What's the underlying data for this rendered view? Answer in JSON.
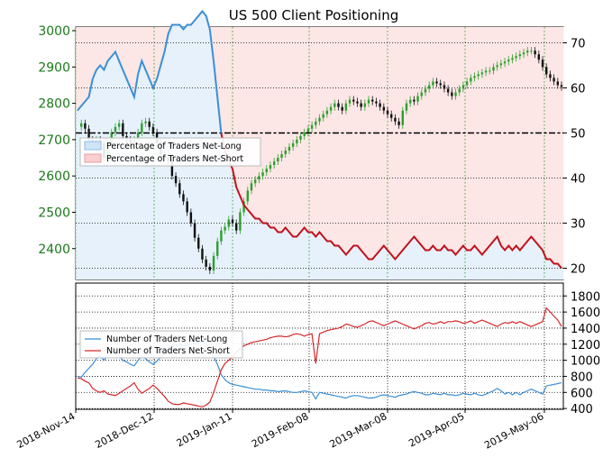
{
  "chart_data": {
    "type": "line",
    "title": "US 500 Client Positioning",
    "x_tick_labels": [
      "2018-Nov-14",
      "2018-Dec-12",
      "2019-Jan-11",
      "2019-Feb-08",
      "2019-Mar-08",
      "2019-Apr-05",
      "2019-May-06"
    ],
    "top_panel": {
      "left_axis": {
        "ticks": [
          2400,
          2500,
          2600,
          2700,
          2800,
          2900,
          3000
        ],
        "ylim": [
          2315,
          3010
        ],
        "color": "#1a7a1a"
      },
      "right_axis": {
        "ticks": [
          20,
          30,
          40,
          50,
          60,
          70
        ],
        "ylim": [
          17.5,
          73.5
        ]
      },
      "reference_line": 50,
      "legend": [
        "Percentage of Traders Net-Long",
        "Percentage of Traders Net-Short"
      ],
      "legend_position": "center-left",
      "price_close": [
        2735,
        2745,
        2730,
        2700,
        2680,
        2700,
        2690,
        2650,
        2690,
        2720,
        2735,
        2745,
        2710,
        2700,
        2690,
        2700,
        2720,
        2745,
        2750,
        2735,
        2720,
        2690,
        2660,
        2650,
        2640,
        2600,
        2580,
        2550,
        2530,
        2500,
        2470,
        2430,
        2400,
        2370,
        2350,
        2340,
        2380,
        2420,
        2450,
        2460,
        2480,
        2470,
        2450,
        2500,
        2530,
        2560,
        2580,
        2590,
        2600,
        2610,
        2620,
        2630,
        2640,
        2650,
        2660,
        2670,
        2680,
        2690,
        2700,
        2710,
        2720,
        2730,
        2740,
        2750,
        2760,
        2770,
        2780,
        2790,
        2800,
        2790,
        2780,
        2800,
        2810,
        2805,
        2800,
        2790,
        2800,
        2810,
        2805,
        2800,
        2790,
        2780,
        2770,
        2760,
        2750,
        2740,
        2780,
        2800,
        2810,
        2805,
        2820,
        2830,
        2840,
        2850,
        2860,
        2855,
        2850,
        2840,
        2830,
        2820,
        2830,
        2840,
        2850,
        2860,
        2870,
        2875,
        2880,
        2885,
        2890,
        2890,
        2900,
        2905,
        2910,
        2915,
        2920,
        2925,
        2930,
        2935,
        2940,
        2945,
        2945,
        2935,
        2920,
        2900,
        2880,
        2870,
        2860,
        2850,
        2845
      ],
      "net_long_pct": [
        55,
        56,
        57,
        58,
        62,
        64,
        65,
        64,
        66,
        67,
        68,
        66,
        64,
        62,
        60,
        58,
        63,
        66,
        64,
        62,
        60,
        62,
        65,
        68,
        72,
        74,
        74,
        74,
        73,
        74,
        74,
        75,
        76,
        77,
        76,
        73,
        66,
        58,
        50,
        46,
        44,
        42,
        38,
        36,
        34,
        33,
        32,
        31,
        31,
        30,
        30,
        29,
        29,
        28,
        28,
        29,
        28,
        27,
        27,
        28,
        29,
        28,
        28,
        27,
        28,
        27,
        26,
        26,
        25,
        25,
        24,
        23,
        24,
        25,
        25,
        24,
        23,
        22,
        22,
        23,
        24,
        25,
        24,
        23,
        22,
        23,
        24,
        25,
        26,
        27,
        26,
        25,
        24,
        24,
        25,
        24,
        24,
        25,
        24,
        24,
        23,
        24,
        25,
        24,
        24,
        25,
        24,
        23,
        24,
        25,
        26,
        27,
        25,
        24,
        25,
        24,
        25,
        24,
        25,
        26,
        27,
        26,
        25,
        24,
        22,
        22,
        21,
        21,
        20
      ],
      "net_short_pct": [
        45,
        44,
        43,
        42,
        38,
        36,
        35,
        36,
        34,
        33,
        32,
        34,
        36,
        38,
        40,
        42,
        37,
        34,
        36,
        38,
        40,
        38,
        35,
        32,
        28,
        26,
        26,
        26,
        27,
        26,
        26,
        25,
        24,
        23,
        24,
        27,
        34,
        42,
        50,
        54,
        56,
        58,
        62,
        64,
        66,
        67,
        68,
        69,
        69,
        70,
        70,
        71,
        71,
        72,
        72,
        71,
        72,
        73,
        73,
        72,
        71,
        72,
        72,
        73,
        72,
        73,
        74,
        74,
        75,
        75,
        76,
        77,
        76,
        75,
        75,
        76,
        77,
        78,
        78,
        77,
        76,
        75,
        76,
        77,
        78,
        77,
        76,
        75,
        74,
        73,
        74,
        75,
        76,
        76,
        75,
        76,
        76,
        75,
        76,
        76,
        77,
        76,
        75,
        76,
        76,
        75,
        76,
        77,
        76,
        75,
        74,
        73,
        75,
        76,
        75,
        76,
        75,
        76,
        75,
        74,
        73,
        74,
        75,
        76,
        78,
        78,
        79,
        79,
        80
      ]
    },
    "bottom_panel": {
      "right_axis": {
        "ticks": [
          400,
          600,
          800,
          1000,
          1200,
          1400,
          1600,
          1800
        ],
        "ylim": [
          390,
          1960
        ]
      },
      "legend": [
        "Number of Traders Net-Long",
        "Number of Traders Net-Short"
      ],
      "legend_position": "center-left",
      "series": [
        {
          "name": "Number of Traders Net-Long",
          "color": "#3b8fd6",
          "values": [
            800,
            790,
            850,
            900,
            950,
            1020,
            1050,
            1000,
            1060,
            1080,
            1100,
            1050,
            1000,
            980,
            950,
            930,
            1000,
            1050,
            1020,
            980,
            950,
            990,
            1040,
            1080,
            1150,
            1180,
            1190,
            1200,
            1180,
            1190,
            1200,
            1210,
            1220,
            1230,
            1210,
            1160,
            1050,
            950,
            820,
            760,
            720,
            700,
            690,
            680,
            670,
            660,
            650,
            640,
            640,
            630,
            630,
            620,
            620,
            610,
            615,
            620,
            610,
            600,
            600,
            610,
            620,
            610,
            600,
            520,
            600,
            590,
            580,
            570,
            560,
            550,
            540,
            530,
            550,
            560,
            560,
            550,
            540,
            530,
            530,
            540,
            560,
            570,
            560,
            550,
            540,
            560,
            570,
            580,
            600,
            610,
            600,
            590,
            570,
            570,
            590,
            580,
            570,
            590,
            570,
            570,
            560,
            570,
            590,
            580,
            570,
            590,
            570,
            560,
            580,
            600,
            620,
            650,
            620,
            580,
            600,
            570,
            600,
            570,
            600,
            620,
            640,
            620,
            600,
            580,
            680,
            690,
            700,
            710,
            720
          ]
        },
        {
          "name": "Number of Traders Net-Short",
          "color": "#d62728",
          "values": [
            780,
            770,
            740,
            720,
            650,
            620,
            600,
            620,
            580,
            570,
            560,
            590,
            620,
            650,
            680,
            720,
            640,
            590,
            620,
            650,
            690,
            650,
            600,
            550,
            490,
            460,
            450,
            450,
            470,
            460,
            450,
            440,
            430,
            420,
            440,
            480,
            600,
            740,
            880,
            960,
            1000,
            1040,
            1100,
            1140,
            1180,
            1200,
            1220,
            1230,
            1240,
            1250,
            1260,
            1280,
            1290,
            1300,
            1300,
            1290,
            1300,
            1320,
            1330,
            1320,
            1300,
            1320,
            1330,
            960,
            1330,
            1350,
            1370,
            1380,
            1390,
            1400,
            1420,
            1450,
            1440,
            1420,
            1410,
            1430,
            1450,
            1480,
            1490,
            1470,
            1450,
            1430,
            1450,
            1470,
            1490,
            1470,
            1450,
            1430,
            1410,
            1390,
            1410,
            1430,
            1460,
            1470,
            1450,
            1460,
            1480,
            1460,
            1480,
            1480,
            1490,
            1480,
            1460,
            1470,
            1490,
            1460,
            1480,
            1500,
            1480,
            1460,
            1440,
            1420,
            1450,
            1470,
            1460,
            1480,
            1460,
            1480,
            1460,
            1440,
            1420,
            1440,
            1460,
            1480,
            1650,
            1600,
            1550,
            1500,
            1420
          ]
        }
      ]
    }
  }
}
